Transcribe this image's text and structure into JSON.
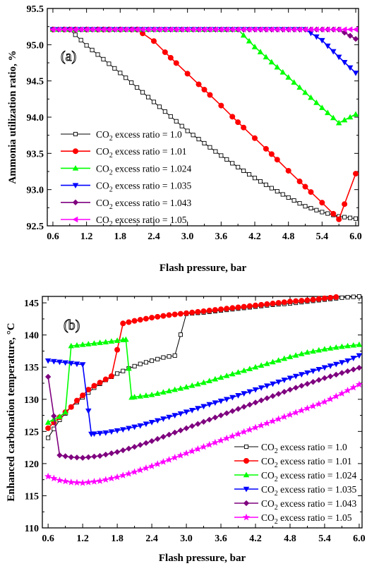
{
  "chart_data": [
    {
      "type": "line",
      "panel_label": "(a)",
      "xlabel": "Flash pressure, bar",
      "ylabel": "Ammonia utilization ratio, %",
      "xlim": [
        0.5,
        6.05
      ],
      "ylim": [
        92.5,
        95.5
      ],
      "xticks": [
        "0.6",
        "1.2",
        "1.8",
        "2.4",
        "3.0",
        "3.6",
        "4.2",
        "4.8",
        "5.4",
        "6.0"
      ],
      "yticks": [
        "92.5",
        "93.0",
        "93.5",
        "94.0",
        "94.5",
        "95.0",
        "95.5"
      ],
      "legend_position": "middle-left",
      "x": [
        0.6,
        0.9,
        1.2,
        1.5,
        1.8,
        2.1,
        2.4,
        2.7,
        3.0,
        3.3,
        3.6,
        3.9,
        4.2,
        4.5,
        4.8,
        5.1,
        5.4,
        5.7,
        6.0
      ],
      "series": [
        {
          "name": "CO2 excess ratio = 1.0",
          "legend": {
            "pre": "CO",
            "sub": "2",
            "post": " excess ratio = 1.0"
          },
          "color": "#000000",
          "marker": "square-open",
          "marker_step": 0.1,
          "values": [
            95.21,
            95.21,
            94.99,
            94.8,
            94.61,
            94.41,
            94.21,
            94.01,
            93.81,
            93.64,
            93.47,
            93.31,
            93.16,
            93.02,
            92.89,
            92.77,
            92.69,
            92.63,
            92.6
          ]
        },
        {
          "name": "CO2 excess ratio = 1.01",
          "legend": {
            "pre": "CO",
            "sub": "2",
            "post": " excess ratio = 1.01"
          },
          "color": "#ff0000",
          "marker": "circle",
          "marker_step": 0.2,
          "values": [
            95.21,
            95.21,
            95.21,
            95.21,
            95.21,
            95.21,
            95.05,
            94.82,
            94.6,
            94.38,
            94.16,
            93.93,
            93.71,
            93.49,
            93.26,
            93.04,
            92.82,
            92.59,
            93.22
          ]
        },
        {
          "name": "CO2 excess ratio = 1.024",
          "legend": {
            "pre": "CO",
            "sub": "2",
            "post": " excess ratio = 1.024"
          },
          "color": "#00ff00",
          "marker": "triangle-up",
          "marker_step": 0.1,
          "values": [
            95.21,
            95.21,
            95.21,
            95.21,
            95.21,
            95.21,
            95.21,
            95.21,
            95.21,
            95.21,
            95.21,
            95.21,
            94.97,
            94.76,
            94.55,
            94.34,
            94.13,
            93.92,
            94.04
          ]
        },
        {
          "name": "CO2 excess ratio = 1.035",
          "legend": {
            "pre": "CO",
            "sub": "2",
            "post": " excess ratio = 1.035"
          },
          "color": "#0000ff",
          "marker": "triangle-down",
          "marker_step": 0.1,
          "values": [
            95.21,
            95.21,
            95.21,
            95.21,
            95.21,
            95.21,
            95.21,
            95.21,
            95.21,
            95.21,
            95.21,
            95.21,
            95.21,
            95.21,
            95.21,
            95.21,
            95.06,
            94.83,
            94.61
          ]
        },
        {
          "name": "CO2 excess ratio = 1.043",
          "legend": {
            "pre": "CO",
            "sub": "2",
            "post": " excess ratio = 1.043"
          },
          "color": "#7f007f",
          "marker": "diamond",
          "marker_step": 0.1,
          "values": [
            95.21,
            95.21,
            95.21,
            95.21,
            95.21,
            95.21,
            95.21,
            95.21,
            95.21,
            95.21,
            95.21,
            95.21,
            95.21,
            95.21,
            95.21,
            95.21,
            95.21,
            95.21,
            95.08
          ]
        },
        {
          "name": "CO2 excess ratio = 1.05",
          "legend": {
            "pre": "CO",
            "sub": "2",
            "post": " excess ratio = 1.05"
          },
          "color": "#ff00ff",
          "marker": "triangle-left",
          "marker_step": 0.1,
          "values": [
            95.21,
            95.21,
            95.21,
            95.21,
            95.21,
            95.21,
            95.21,
            95.21,
            95.21,
            95.21,
            95.21,
            95.21,
            95.21,
            95.21,
            95.21,
            95.21,
            95.21,
            95.21,
            95.21
          ]
        }
      ]
    },
    {
      "type": "line",
      "panel_label": "(b)",
      "xlabel": "Flash pressure, bar",
      "ylabel": "Enhanced carbonation temperature, °C",
      "xlim": [
        0.5,
        6.05
      ],
      "ylim": [
        110,
        146
      ],
      "xticks": [
        "0.6",
        "1.2",
        "1.8",
        "2.4",
        "3.0",
        "3.6",
        "4.2",
        "4.8",
        "5.4",
        "6.0"
      ],
      "yticks": [
        "110",
        "115",
        "120",
        "125",
        "130",
        "135",
        "140",
        "145"
      ],
      "legend_position": "bottom-right",
      "series": [
        {
          "name": "CO2 excess ratio = 1.0",
          "legend": {
            "pre": "CO",
            "sub": "2",
            "post": " excess ratio = 1.0"
          },
          "color": "#000000",
          "marker": "square-open",
          "marker_step": 0.1,
          "points": [
            [
              0.6,
              124.0
            ],
            [
              0.8,
              126.8
            ],
            [
              1.0,
              128.8
            ],
            [
              1.2,
              130.3
            ],
            [
              1.4,
              131.8
            ],
            [
              1.6,
              133.0
            ],
            [
              1.8,
              134.0
            ],
            [
              2.0,
              134.8
            ],
            [
              2.2,
              135.5
            ],
            [
              2.4,
              136.0
            ],
            [
              2.6,
              136.5
            ],
            [
              2.8,
              136.8
            ],
            [
              3.0,
              143.3
            ],
            [
              3.3,
              143.5
            ],
            [
              3.6,
              143.8
            ],
            [
              3.9,
              144.1
            ],
            [
              4.2,
              144.4
            ],
            [
              4.5,
              144.7
            ],
            [
              4.8,
              144.9
            ],
            [
              5.1,
              145.2
            ],
            [
              5.4,
              145.5
            ],
            [
              5.7,
              145.8
            ],
            [
              6.0,
              146.0
            ]
          ]
        },
        {
          "name": "CO2 excess ratio = 1.01",
          "legend": {
            "pre": "CO",
            "sub": "2",
            "post": " excess ratio = 1.01"
          },
          "color": "#ff0000",
          "marker": "circle",
          "marker_step": 0.1,
          "points": [
            [
              0.6,
              125.5
            ],
            [
              0.7,
              126.4
            ],
            [
              0.8,
              127.2
            ],
            [
              0.9,
              128.0
            ],
            [
              1.0,
              128.8
            ],
            [
              1.1,
              129.8
            ],
            [
              1.2,
              130.6
            ],
            [
              1.3,
              131.5
            ],
            [
              1.4,
              132.1
            ],
            [
              1.5,
              132.6
            ],
            [
              1.6,
              133.1
            ],
            [
              1.7,
              133.6
            ],
            [
              1.9,
              141.8
            ],
            [
              2.1,
              142.2
            ],
            [
              2.4,
              142.7
            ],
            [
              2.7,
              143.1
            ],
            [
              3.0,
              143.4
            ],
            [
              3.3,
              143.7
            ],
            [
              3.6,
              144.0
            ],
            [
              3.9,
              144.3
            ],
            [
              4.2,
              144.6
            ],
            [
              4.5,
              144.9
            ],
            [
              4.8,
              145.2
            ],
            [
              5.1,
              145.4
            ],
            [
              5.4,
              145.7
            ],
            [
              5.6,
              145.9
            ]
          ]
        },
        {
          "name": "CO2 excess ratio = 1.024",
          "legend": {
            "pre": "CO",
            "sub": "2",
            "post": " excess ratio = 1.024"
          },
          "color": "#00ff00",
          "marker": "triangle-up",
          "marker_step": 0.1,
          "points": [
            [
              0.6,
              126.4
            ],
            [
              0.7,
              126.9
            ],
            [
              0.8,
              127.3
            ],
            [
              0.9,
              128.0
            ],
            [
              1.0,
              138.3
            ],
            [
              1.3,
              138.6
            ],
            [
              1.6,
              138.9
            ],
            [
              1.95,
              139.3
            ],
            [
              2.05,
              130.3
            ],
            [
              2.4,
              130.7
            ],
            [
              2.7,
              131.3
            ],
            [
              3.0,
              131.9
            ],
            [
              3.3,
              132.6
            ],
            [
              3.6,
              133.4
            ],
            [
              3.9,
              134.2
            ],
            [
              4.2,
              135.0
            ],
            [
              4.5,
              135.8
            ],
            [
              4.8,
              136.6
            ],
            [
              5.1,
              137.3
            ],
            [
              5.4,
              137.8
            ],
            [
              5.7,
              138.2
            ],
            [
              6.0,
              138.5
            ]
          ]
        },
        {
          "name": "CO2 excess ratio = 1.035",
          "legend": {
            "pre": "CO",
            "sub": "2",
            "post": " excess ratio = 1.035"
          },
          "color": "#0000ff",
          "marker": "triangle-down",
          "marker_step": 0.1,
          "points": [
            [
              0.6,
              136.0
            ],
            [
              0.8,
              135.8
            ],
            [
              1.0,
              135.6
            ],
            [
              1.2,
              135.4
            ],
            [
              1.35,
              124.6
            ],
            [
              1.6,
              124.8
            ],
            [
              1.9,
              125.3
            ],
            [
              2.2,
              125.9
            ],
            [
              2.5,
              126.7
            ],
            [
              2.8,
              127.5
            ],
            [
              3.1,
              128.3
            ],
            [
              3.4,
              129.2
            ],
            [
              3.7,
              130.0
            ],
            [
              4.0,
              130.9
            ],
            [
              4.3,
              131.8
            ],
            [
              4.6,
              132.7
            ],
            [
              4.9,
              133.6
            ],
            [
              5.2,
              134.4
            ],
            [
              5.5,
              135.2
            ],
            [
              5.8,
              136.0
            ],
            [
              6.0,
              136.8
            ]
          ]
        },
        {
          "name": "CO2 excess ratio = 1.043",
          "legend": {
            "pre": "CO",
            "sub": "2",
            "post": " excess ratio = 1.043"
          },
          "color": "#7f007f",
          "marker": "diamond",
          "marker_step": 0.1,
          "points": [
            [
              0.6,
              133.5
            ],
            [
              0.8,
              121.3
            ],
            [
              1.0,
              121.0
            ],
            [
              1.2,
              120.9
            ],
            [
              1.5,
              121.2
            ],
            [
              1.8,
              121.8
            ],
            [
              2.1,
              122.6
            ],
            [
              2.4,
              123.5
            ],
            [
              2.7,
              124.5
            ],
            [
              3.0,
              125.5
            ],
            [
              3.3,
              126.5
            ],
            [
              3.6,
              127.5
            ],
            [
              3.9,
              128.5
            ],
            [
              4.2,
              129.5
            ],
            [
              4.5,
              130.5
            ],
            [
              4.8,
              131.5
            ],
            [
              5.1,
              132.4
            ],
            [
              5.4,
              133.3
            ],
            [
              5.7,
              134.1
            ],
            [
              6.0,
              134.9
            ]
          ]
        },
        {
          "name": "CO2 excess ratio = 1.05",
          "legend": {
            "pre": "CO",
            "sub": "2",
            "post": " excess ratio = 1.05"
          },
          "color": "#ff00ff",
          "marker": "star",
          "marker_step": 0.1,
          "points": [
            [
              0.6,
              118.0
            ],
            [
              0.8,
              117.4
            ],
            [
              1.0,
              117.1
            ],
            [
              1.2,
              117.0
            ],
            [
              1.5,
              117.3
            ],
            [
              1.8,
              117.9
            ],
            [
              2.1,
              118.7
            ],
            [
              2.4,
              119.6
            ],
            [
              2.7,
              120.6
            ],
            [
              3.0,
              121.6
            ],
            [
              3.3,
              122.6
            ],
            [
              3.6,
              123.6
            ],
            [
              3.9,
              124.6
            ],
            [
              4.2,
              125.6
            ],
            [
              4.5,
              126.6
            ],
            [
              4.8,
              127.6
            ],
            [
              5.1,
              128.6
            ],
            [
              5.4,
              129.6
            ],
            [
              5.7,
              130.9
            ],
            [
              6.0,
              132.3
            ]
          ]
        }
      ]
    }
  ]
}
